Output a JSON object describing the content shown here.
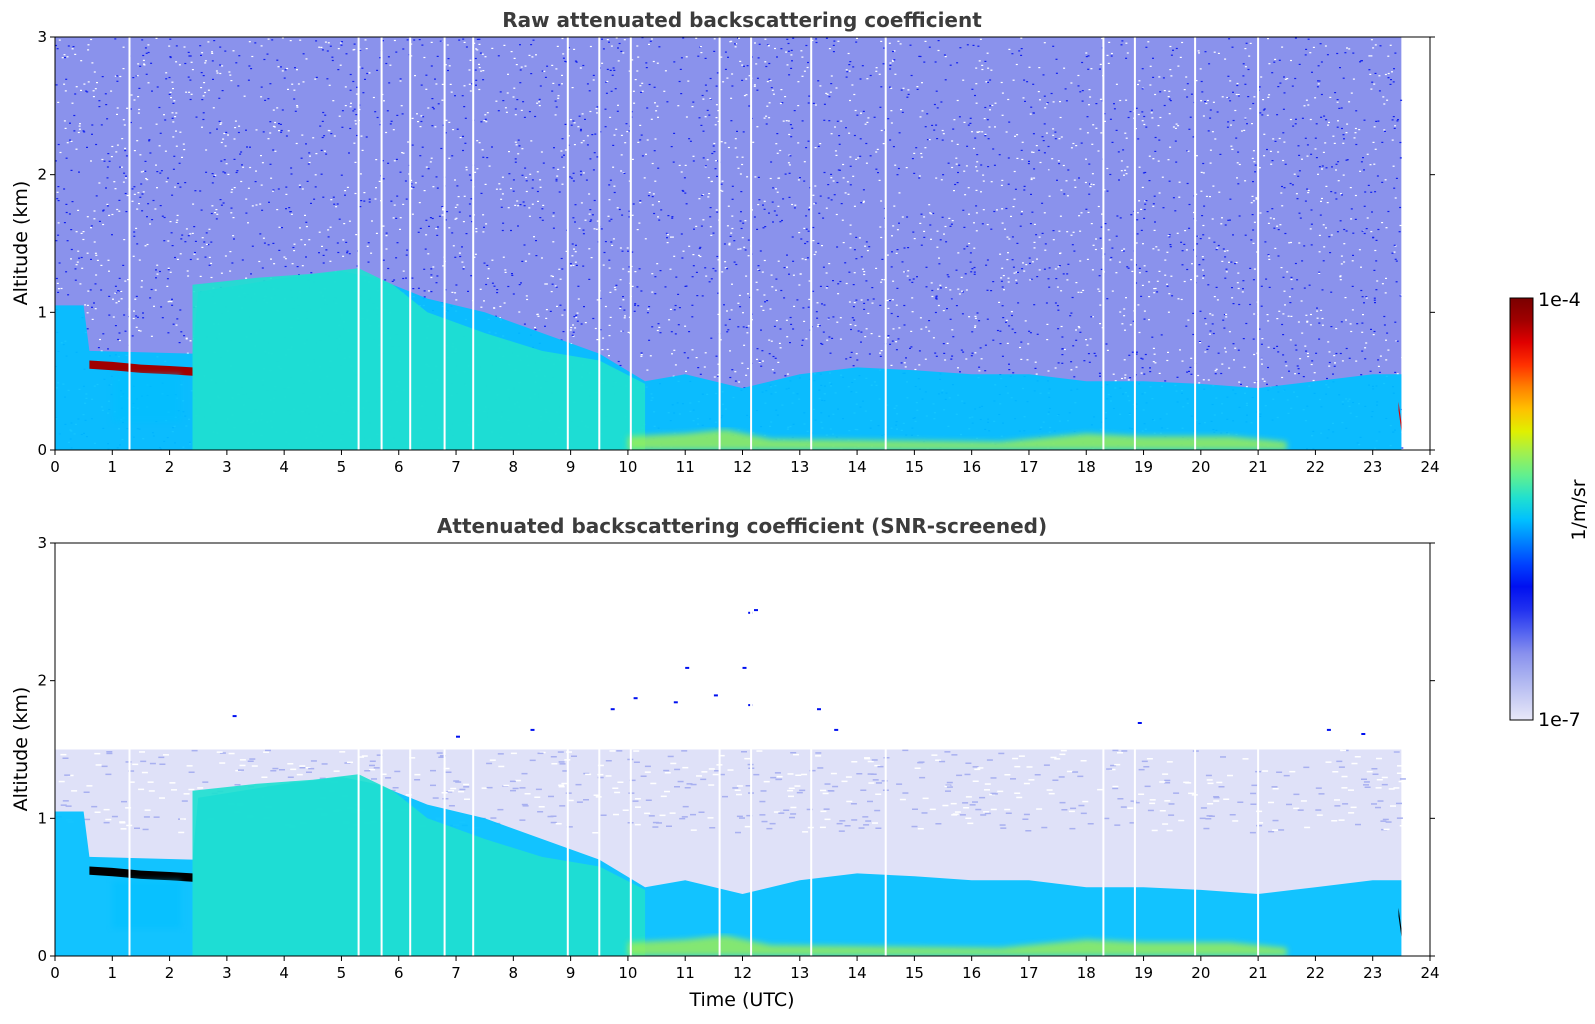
{
  "chart_data": [
    {
      "type": "heatmap",
      "title": "Raw attenuated backscattering coefficient",
      "xlabel": "",
      "ylabel": "Altitude (km)",
      "xlim": [
        0,
        24
      ],
      "ylim": [
        0,
        3
      ],
      "x_ticks": [
        "0",
        "1",
        "2",
        "3",
        "4",
        "5",
        "6",
        "7",
        "8",
        "9",
        "10",
        "11",
        "12",
        "13",
        "14",
        "15",
        "16",
        "17",
        "18",
        "19",
        "20",
        "21",
        "22",
        "23",
        "24"
      ],
      "y_ticks": [
        "0",
        "1",
        "2",
        "3"
      ],
      "data_end_time": 23.5,
      "gap_times": [
        1.3,
        5.3,
        5.7,
        6.2,
        6.8,
        7.3,
        8.95,
        9.5,
        10.05,
        11.6,
        12.15,
        13.2,
        14.5,
        18.3,
        18.85,
        19.9,
        21.0
      ],
      "layers": [
        {
          "name": "boundary layer",
          "level": 0.45,
          "points": [
            [
              0,
              1.05
            ],
            [
              0.5,
              1.05
            ],
            [
              0.6,
              0.72
            ],
            [
              2.4,
              0.7
            ],
            [
              2.5,
              1.15
            ],
            [
              4,
              1.25
            ],
            [
              5,
              1.3
            ],
            [
              5.6,
              1.25
            ],
            [
              6.5,
              1.1
            ],
            [
              7.5,
              1.0
            ],
            [
              8.5,
              0.85
            ],
            [
              9.5,
              0.7
            ],
            [
              10.3,
              0.5
            ],
            [
              11,
              0.55
            ],
            [
              12,
              0.45
            ],
            [
              13,
              0.55
            ],
            [
              14,
              0.6
            ],
            [
              15,
              0.58
            ],
            [
              16,
              0.55
            ],
            [
              17,
              0.55
            ],
            [
              18,
              0.5
            ],
            [
              19,
              0.5
            ],
            [
              20,
              0.48
            ],
            [
              21,
              0.45
            ],
            [
              22,
              0.5
            ],
            [
              23,
              0.55
            ],
            [
              23.5,
              0.55
            ]
          ]
        },
        {
          "name": "upper aerosol layer",
          "level": 0.5,
          "points": [
            [
              2.4,
              1.2
            ],
            [
              3.5,
              1.25
            ],
            [
              4.5,
              1.28
            ],
            [
              5.3,
              1.32
            ],
            [
              5.9,
              1.2
            ],
            [
              6.5,
              1.0
            ],
            [
              7.5,
              0.85
            ],
            [
              8.5,
              0.72
            ],
            [
              9.5,
              0.65
            ],
            [
              10.3,
              0.48
            ]
          ]
        },
        {
          "name": "near-surface aerosol",
          "level": 0.62,
          "points": [
            [
              10,
              0.1
            ],
            [
              11,
              0.12
            ],
            [
              11.7,
              0.15
            ],
            [
              12.5,
              0.08
            ],
            [
              16.5,
              0.06
            ],
            [
              17.5,
              0.1
            ],
            [
              18,
              0.12
            ],
            [
              19,
              0.1
            ],
            [
              20.5,
              0.1
            ],
            [
              21.5,
              0.06
            ]
          ]
        },
        {
          "name": "cloud base",
          "level": 0.95,
          "points": [
            [
              0.6,
              0.65
            ],
            [
              1.0,
              0.64
            ],
            [
              1.5,
              0.62
            ],
            [
              2.0,
              0.61
            ],
            [
              2.4,
              0.6
            ]
          ]
        },
        {
          "name": "cloud end",
          "level": 0.92,
          "points": [
            [
              23.45,
              0.35
            ],
            [
              23.5,
              0.2
            ]
          ]
        }
      ]
    },
    {
      "type": "heatmap",
      "title": "Attenuated backscattering coefficient (SNR-screened)",
      "xlabel": "Time (UTC)",
      "ylabel": "Altitude (km)",
      "xlim": [
        0,
        24
      ],
      "ylim": [
        0,
        3
      ],
      "x_ticks": [
        "0",
        "1",
        "2",
        "3",
        "4",
        "5",
        "6",
        "7",
        "8",
        "9",
        "10",
        "11",
        "12",
        "13",
        "14",
        "15",
        "16",
        "17",
        "18",
        "19",
        "20",
        "21",
        "22",
        "23",
        "24"
      ],
      "y_ticks": [
        "0",
        "1",
        "2",
        "3"
      ],
      "data_end_time": 23.5,
      "screen_top_km": 1.5,
      "gap_times": [
        1.3,
        5.3,
        5.7,
        6.2,
        6.8,
        7.3,
        8.95,
        9.5,
        10.05,
        11.6,
        12.15,
        13.2,
        14.5,
        18.3,
        18.85,
        19.9,
        21.0
      ],
      "speckles": [
        [
          3.1,
          1.75
        ],
        [
          7.0,
          1.6
        ],
        [
          8.3,
          1.65
        ],
        [
          9.7,
          1.8
        ],
        [
          10.1,
          1.88
        ],
        [
          10.8,
          1.85
        ],
        [
          11.0,
          2.1
        ],
        [
          11.5,
          1.9
        ],
        [
          12.0,
          2.1
        ],
        [
          12.1,
          2.5
        ],
        [
          12.2,
          2.52
        ],
        [
          12.1,
          1.83
        ],
        [
          13.3,
          1.8
        ],
        [
          13.6,
          1.65
        ],
        [
          18.9,
          1.7
        ],
        [
          22.2,
          1.65
        ],
        [
          22.8,
          1.62
        ]
      ],
      "layers": [
        {
          "name": "boundary layer",
          "level": 0.45,
          "points": [
            [
              0,
              1.05
            ],
            [
              0.5,
              1.05
            ],
            [
              0.6,
              0.72
            ],
            [
              2.4,
              0.7
            ],
            [
              2.5,
              1.15
            ],
            [
              4,
              1.25
            ],
            [
              5,
              1.3
            ],
            [
              5.6,
              1.25
            ],
            [
              6.5,
              1.1
            ],
            [
              7.5,
              1.0
            ],
            [
              8.5,
              0.85
            ],
            [
              9.5,
              0.7
            ],
            [
              10.3,
              0.5
            ],
            [
              11,
              0.55
            ],
            [
              12,
              0.45
            ],
            [
              13,
              0.55
            ],
            [
              14,
              0.6
            ],
            [
              15,
              0.58
            ],
            [
              16,
              0.55
            ],
            [
              17,
              0.55
            ],
            [
              18,
              0.5
            ],
            [
              19,
              0.5
            ],
            [
              20,
              0.48
            ],
            [
              21,
              0.45
            ],
            [
              22,
              0.5
            ],
            [
              23,
              0.55
            ],
            [
              23.5,
              0.55
            ]
          ]
        },
        {
          "name": "upper aerosol layer",
          "level": 0.5,
          "points": [
            [
              2.4,
              1.2
            ],
            [
              3.5,
              1.25
            ],
            [
              4.5,
              1.28
            ],
            [
              5.3,
              1.32
            ],
            [
              5.9,
              1.2
            ],
            [
              6.5,
              1.0
            ],
            [
              7.5,
              0.85
            ],
            [
              8.5,
              0.72
            ],
            [
              9.5,
              0.65
            ],
            [
              10.3,
              0.48
            ]
          ]
        },
        {
          "name": "near-surface aerosol",
          "level": 0.62,
          "points": [
            [
              10,
              0.1
            ],
            [
              11,
              0.12
            ],
            [
              11.7,
              0.15
            ],
            [
              12.5,
              0.08
            ],
            [
              16.5,
              0.06
            ],
            [
              17.5,
              0.1
            ],
            [
              18,
              0.12
            ],
            [
              19,
              0.1
            ],
            [
              20.5,
              0.1
            ],
            [
              21.5,
              0.06
            ]
          ]
        },
        {
          "name": "cloud base",
          "level": 1.0,
          "points": [
            [
              0.6,
              0.65
            ],
            [
              1.0,
              0.64
            ],
            [
              1.5,
              0.62
            ],
            [
              2.0,
              0.61
            ],
            [
              2.4,
              0.6
            ]
          ]
        },
        {
          "name": "cloud end",
          "level": 1.0,
          "points": [
            [
              23.45,
              0.35
            ],
            [
              23.5,
              0.2
            ]
          ]
        }
      ]
    }
  ],
  "colorbar": {
    "label": "1/m/sr",
    "max_label": "1e-4",
    "min_label": "1e-7",
    "scale": "log",
    "colors": [
      "#e8e8f8",
      "#c8ccf4",
      "#a8b0f0",
      "#8890ee",
      "#5060f0",
      "#2030f0",
      "#0010f0",
      "#0040ff",
      "#0080ff",
      "#00c0ff",
      "#20e0d0",
      "#60f090",
      "#a0f050",
      "#e0f000",
      "#ffc000",
      "#ff8000",
      "#ff3000",
      "#e00000",
      "#a00000",
      "#7a0000"
    ]
  }
}
